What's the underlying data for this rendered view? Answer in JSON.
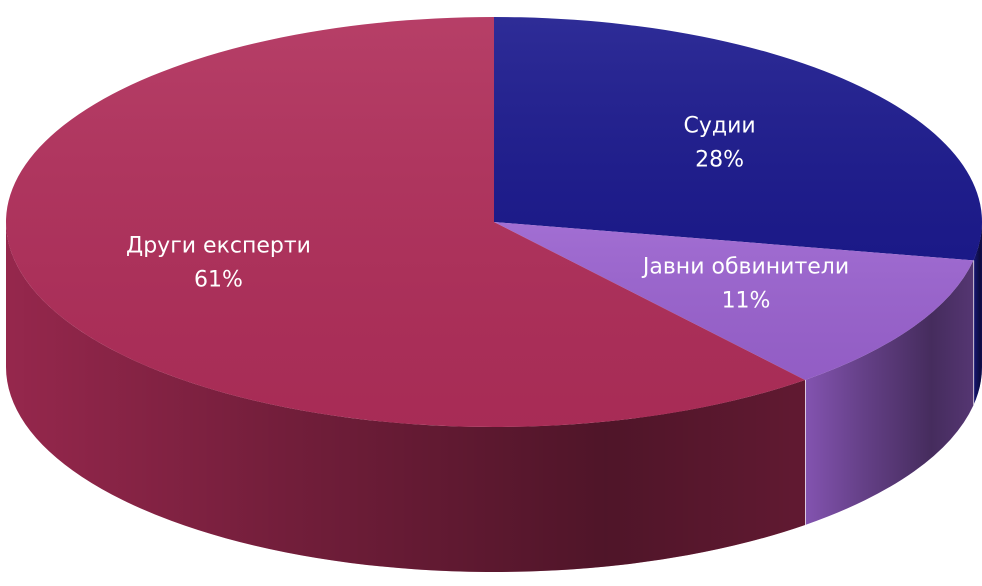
{
  "chart_data": {
    "type": "pie",
    "categories": [
      "Судии",
      "Јавни обвинители",
      "Други експерти"
    ],
    "values": [
      28,
      11,
      61
    ],
    "value_labels": [
      "28%",
      "11%",
      "61%"
    ],
    "colors": [
      "#1c1a8e",
      "#9a62cf",
      "#b02e5a"
    ]
  }
}
